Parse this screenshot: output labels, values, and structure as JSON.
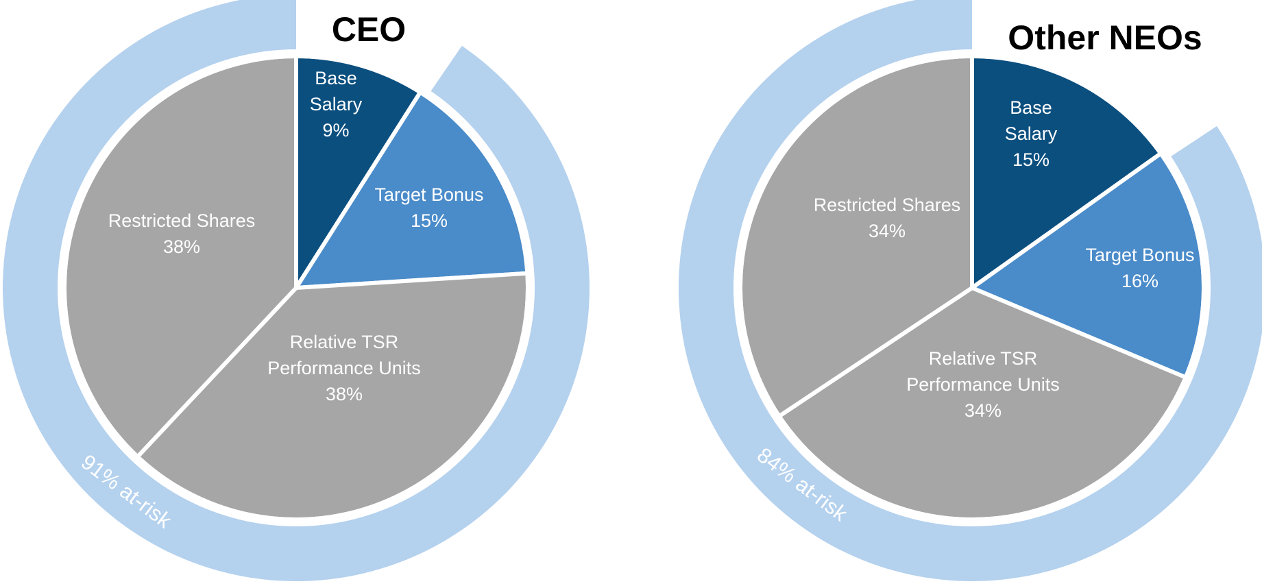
{
  "chart_data": [
    {
      "type": "pie",
      "title": "CEO",
      "slices": [
        {
          "label_lines": [
            "Base",
            "Salary",
            "9%"
          ],
          "value": 9,
          "color": "#0b4f7f"
        },
        {
          "label_lines": [
            "Target Bonus",
            "15%"
          ],
          "value": 15,
          "color": "#4a8bc9"
        },
        {
          "label_lines": [
            "Relative TSR",
            "Performance Units",
            "38%"
          ],
          "value": 38,
          "color": "#a6a6a6"
        },
        {
          "label_lines": [
            "Restricted Shares",
            "38%"
          ],
          "value": 38,
          "color": "#a6a6a6"
        }
      ],
      "at_risk": {
        "label": "91% at-risk",
        "value": 91,
        "color": "#b4d1ee"
      }
    },
    {
      "type": "pie",
      "title": "Other NEOs",
      "slices": [
        {
          "label_lines": [
            "Base",
            "Salary",
            "15%"
          ],
          "value": 15,
          "color": "#0b4f7f"
        },
        {
          "label_lines": [
            "Target Bonus",
            "16%"
          ],
          "value": 16,
          "color": "#4a8bc9"
        },
        {
          "label_lines": [
            "Relative TSR",
            "Performance Units",
            "34%"
          ],
          "value": 34,
          "color": "#a6a6a6"
        },
        {
          "label_lines": [
            "Restricted Shares",
            "34%"
          ],
          "value": 34,
          "color": "#a6a6a6"
        }
      ],
      "at_risk": {
        "label": "84% at-risk",
        "value": 84,
        "color": "#b4d1ee"
      }
    }
  ]
}
